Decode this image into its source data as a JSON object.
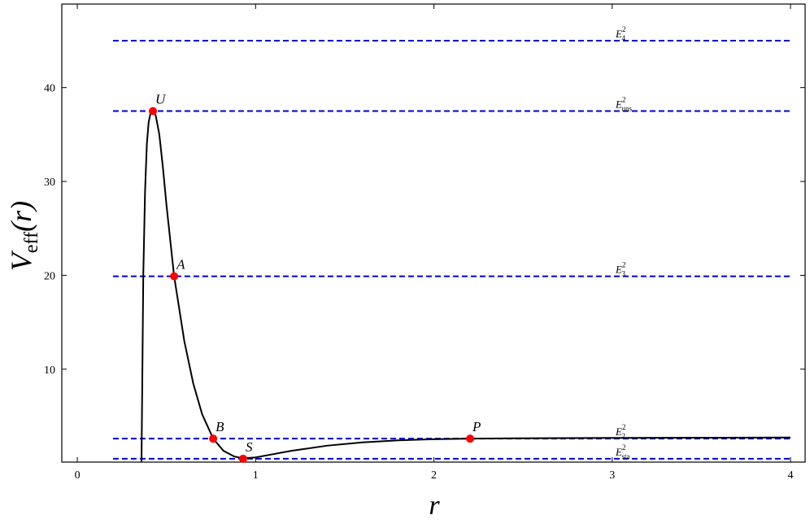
{
  "chart_data": {
    "type": "line",
    "xlabel": "r",
    "ylabel": {
      "main": "V",
      "sub": "eff",
      "tail": "(r)"
    },
    "xlim": [
      -0.087,
      4.082
    ],
    "ylim": [
      0.1,
      48.9
    ],
    "xticks": [
      0,
      1,
      2,
      3,
      4
    ],
    "yticks": [
      10,
      20,
      30,
      40
    ],
    "series": [
      {
        "color": "#000000",
        "x": [
          0.36,
          0.365,
          0.37,
          0.38,
          0.39,
          0.4,
          0.41,
          0.424,
          0.44,
          0.46,
          0.48,
          0.5,
          0.543,
          0.6,
          0.65,
          0.7,
          0.762,
          0.82,
          0.88,
          0.93,
          1.0,
          1.1,
          1.2,
          1.4,
          1.6,
          1.8,
          2.0,
          2.2,
          2.6,
          3.0,
          3.5,
          4.0
        ],
        "values": [
          0.1,
          10,
          20,
          29,
          34,
          36.3,
          37.2,
          37.5,
          37.0,
          35.0,
          31.5,
          27.5,
          19.9,
          13.0,
          8.5,
          5.2,
          2.6,
          1.3,
          0.7,
          0.5,
          0.6,
          0.95,
          1.3,
          1.85,
          2.2,
          2.42,
          2.54,
          2.6,
          2.65,
          2.68,
          2.7,
          2.72
        ]
      }
    ],
    "levels": [
      {
        "symbol": "E",
        "sub": "4",
        "sup": "2",
        "value": 45.0
      },
      {
        "symbol": "E",
        "sub": "uns",
        "sup": "2",
        "value": 37.5
      },
      {
        "symbol": "E",
        "sub": "3",
        "sup": "2",
        "value": 19.9
      },
      {
        "symbol": "E",
        "sub": "2",
        "sup": "2",
        "value": 2.6
      },
      {
        "symbol": "E",
        "sub": "sta",
        "sup": "2",
        "value": 0.46
      }
    ],
    "level_start": 0.2,
    "level_color": "#0000cc",
    "points": [
      {
        "label": "U",
        "x": 0.424,
        "y": 37.5
      },
      {
        "label": "A",
        "x": 0.543,
        "y": 19.9
      },
      {
        "label": "B",
        "x": 0.762,
        "y": 2.6
      },
      {
        "label": "S",
        "x": 0.93,
        "y": 0.46
      },
      {
        "label": "P",
        "x": 2.203,
        "y": 2.6
      }
    ],
    "point_color": "#ff0000"
  }
}
